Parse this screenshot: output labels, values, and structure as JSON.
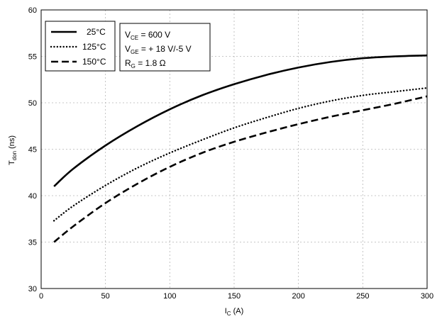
{
  "chart_data": {
    "type": "line",
    "xlabel": {
      "main": "I",
      "sub": "C",
      "unit": " (A)"
    },
    "ylabel": {
      "main": "T",
      "sub": "don",
      "unit": " (ns)"
    },
    "xlim": [
      0,
      300
    ],
    "ylim": [
      30,
      60
    ],
    "xticks": [
      0,
      50,
      100,
      150,
      200,
      250,
      300
    ],
    "yticks": [
      30,
      35,
      40,
      45,
      50,
      55,
      60
    ],
    "grid": true,
    "legend_position": "top-left",
    "series": [
      {
        "name": "25°C",
        "style": "solid",
        "x": [
          10,
          25,
          50,
          75,
          100,
          125,
          150,
          175,
          200,
          225,
          250,
          275,
          300
        ],
        "y": [
          41.0,
          42.9,
          45.4,
          47.5,
          49.3,
          50.8,
          52.0,
          53.0,
          53.8,
          54.4,
          54.8,
          55.0,
          55.1
        ]
      },
      {
        "name": "125°C",
        "style": "dotted",
        "x": [
          10,
          25,
          50,
          75,
          100,
          125,
          150,
          175,
          200,
          225,
          250,
          275,
          300
        ],
        "y": [
          37.3,
          38.9,
          41.1,
          43.0,
          44.6,
          46.0,
          47.3,
          48.4,
          49.4,
          50.2,
          50.8,
          51.2,
          51.6
        ]
      },
      {
        "name": "150°C",
        "style": "dashed",
        "x": [
          10,
          25,
          50,
          75,
          100,
          125,
          150,
          175,
          200,
          225,
          250,
          275,
          300
        ],
        "y": [
          35.0,
          36.7,
          39.2,
          41.3,
          43.1,
          44.6,
          45.8,
          46.8,
          47.7,
          48.5,
          49.2,
          49.9,
          50.7
        ]
      }
    ],
    "conditions": [
      {
        "main": "V",
        "sub": "CE",
        "rest": " = 600 V"
      },
      {
        "main": "V",
        "sub": "GE",
        "rest": " = + 18 V/-5 V"
      },
      {
        "main": "R",
        "sub": "G",
        "rest": " = 1.8 Ω"
      }
    ]
  }
}
